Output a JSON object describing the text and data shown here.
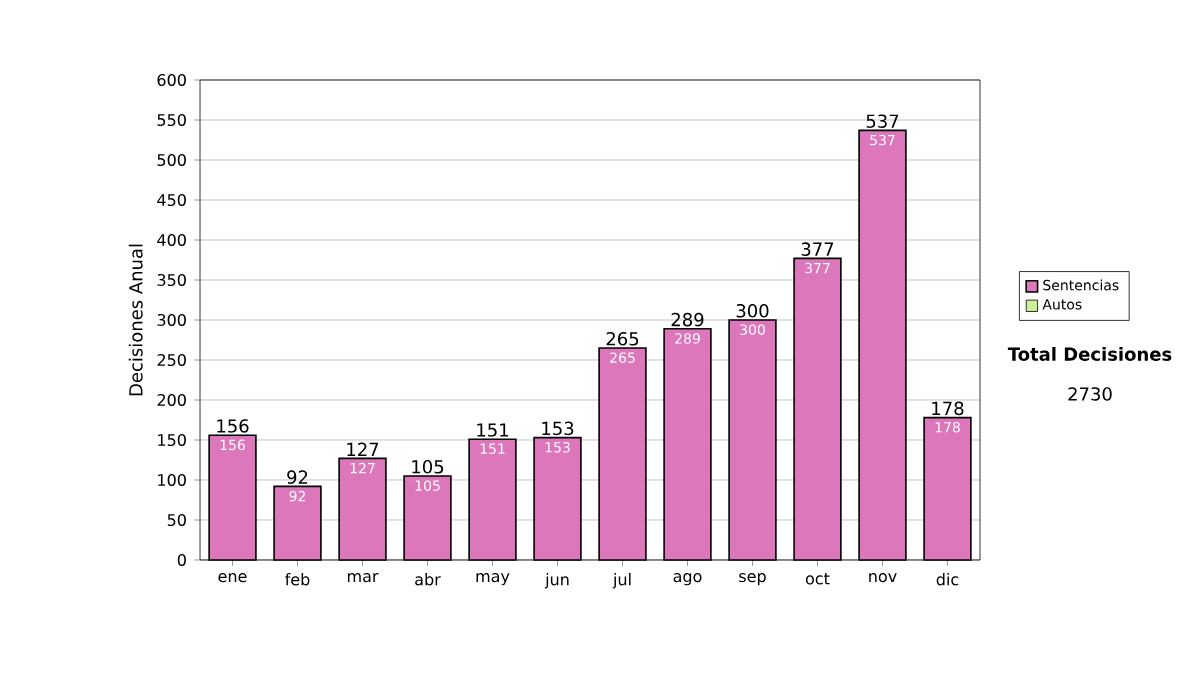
{
  "chart_data": {
    "type": "bar",
    "ylabel": "Decisiones Anual",
    "categories": [
      "ene",
      "feb",
      "mar",
      "abr",
      "may",
      "jun",
      "jul",
      "ago",
      "sep",
      "oct",
      "nov",
      "dic"
    ],
    "series": [
      {
        "name": "Sentencias",
        "color": "#dd77bb",
        "values": [
          156,
          92,
          127,
          105,
          151,
          153,
          265,
          289,
          300,
          377,
          537,
          178
        ],
        "value_labels": [
          "156",
          "92",
          "127",
          "105",
          "151",
          "153",
          "265",
          "289",
          "300",
          "377",
          "537",
          "178"
        ]
      },
      {
        "name": "Autos",
        "color": "#ccee99",
        "values": [
          null,
          null,
          null,
          null,
          null,
          null,
          null,
          null,
          null,
          null,
          null,
          null
        ]
      }
    ],
    "totals": [
      "156",
      "92",
      "127",
      "105",
      "151",
      "153",
      "265",
      "289",
      "300",
      "377",
      "537",
      "178"
    ],
    "ylim": [
      0,
      600
    ],
    "yticks": [
      0,
      50,
      100,
      150,
      200,
      250,
      300,
      350,
      400,
      450,
      500,
      550,
      600
    ],
    "grid": "y",
    "legend": "right",
    "annotations": [
      "Total Decisiones",
      "2730"
    ]
  }
}
